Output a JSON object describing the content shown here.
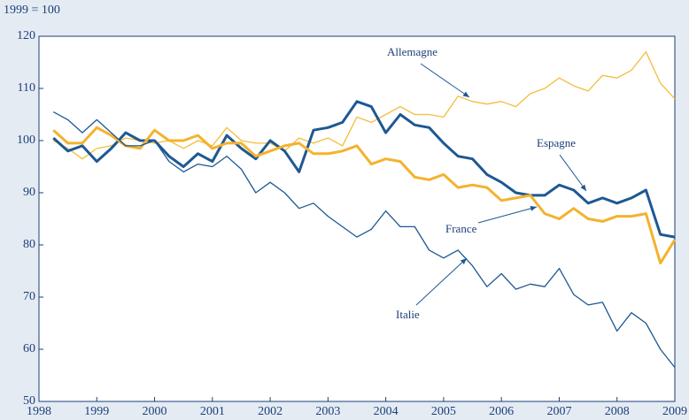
{
  "chart_data": {
    "type": "line",
    "subtitle": "1999 = 100",
    "xlim": [
      1998,
      2009
    ],
    "xticks": [
      1998,
      1999,
      2000,
      2001,
      2002,
      2003,
      2004,
      2005,
      2006,
      2007,
      2008,
      2009
    ],
    "ylim": [
      50,
      120
    ],
    "yticks": [
      50,
      60,
      70,
      80,
      90,
      100,
      110,
      120
    ],
    "grid": false,
    "x": [
      1998.25,
      1998.5,
      1998.75,
      1999,
      1999.25,
      1999.5,
      1999.75,
      2000,
      2000.25,
      2000.5,
      2000.75,
      2001,
      2001.25,
      2001.5,
      2001.75,
      2002,
      2002.25,
      2002.5,
      2002.75,
      2003,
      2003.25,
      2003.5,
      2003.75,
      2004,
      2004.25,
      2004.5,
      2004.75,
      2005,
      2005.25,
      2005.5,
      2005.75,
      2006,
      2006.25,
      2006.5,
      2006.75,
      2007,
      2007.25,
      2007.5,
      2007.75,
      2008,
      2008.25,
      2008.5,
      2008.75,
      2009
    ],
    "series": [
      {
        "name": "Allemagne",
        "color": "#f4bd3c",
        "width": 1.3,
        "values": [
          100,
          98.5,
          96.5,
          98.5,
          99,
          100.5,
          100,
          99.5,
          100,
          98.5,
          100,
          99,
          102.5,
          100,
          99.5,
          99.5,
          98,
          100.5,
          99.5,
          100.5,
          99,
          104.5,
          103.5,
          105,
          106.5,
          105,
          105,
          104.5,
          108.5,
          107.5,
          107,
          107.5,
          106.5,
          109,
          110,
          112,
          110.5,
          109.5,
          112.5,
          112,
          113.5,
          117,
          111,
          108
        ]
      },
      {
        "name": "Espagne",
        "color": "#1d5893",
        "width": 3,
        "values": [
          100.5,
          98,
          99,
          96,
          98.5,
          101.5,
          100,
          100,
          97,
          95,
          97.5,
          96,
          101,
          98.5,
          96.5,
          100,
          98,
          94,
          102,
          102.5,
          103.5,
          107.5,
          106.5,
          101.5,
          105,
          103,
          102.5,
          99.5,
          97,
          96.5,
          93.5,
          92,
          90,
          89.5,
          89.5,
          91.5,
          90.5,
          88,
          89,
          88,
          89,
          90.5,
          82,
          81.5
        ]
      },
      {
        "name": "France",
        "color": "#f4b22e",
        "width": 3,
        "values": [
          102,
          99.5,
          99.5,
          102.5,
          101,
          99,
          98.5,
          102,
          100,
          100,
          101,
          98.5,
          99.5,
          99.5,
          97,
          98,
          99,
          99.5,
          97.5,
          97.5,
          98,
          99,
          95.5,
          96.5,
          96,
          93,
          92.5,
          93.5,
          91,
          91.5,
          91,
          88.5,
          89,
          89.5,
          86,
          85,
          87,
          85,
          84.5,
          85.5,
          85.5,
          86,
          76.5,
          81
        ]
      },
      {
        "name": "Italie",
        "color": "#1d5893",
        "width": 1.3,
        "values": [
          105.5,
          104,
          101.5,
          104,
          101.5,
          99,
          99,
          100,
          96,
          94,
          95.5,
          95,
          97,
          94.5,
          90,
          92,
          90,
          87,
          88,
          85.5,
          83.5,
          81.5,
          83,
          86.5,
          83.5,
          83.5,
          79,
          77.5,
          79,
          76,
          72,
          74.5,
          71.5,
          72.5,
          72,
          75.5,
          70.5,
          68.5,
          69,
          63.5,
          67,
          65,
          60,
          56.5
        ]
      }
    ]
  }
}
